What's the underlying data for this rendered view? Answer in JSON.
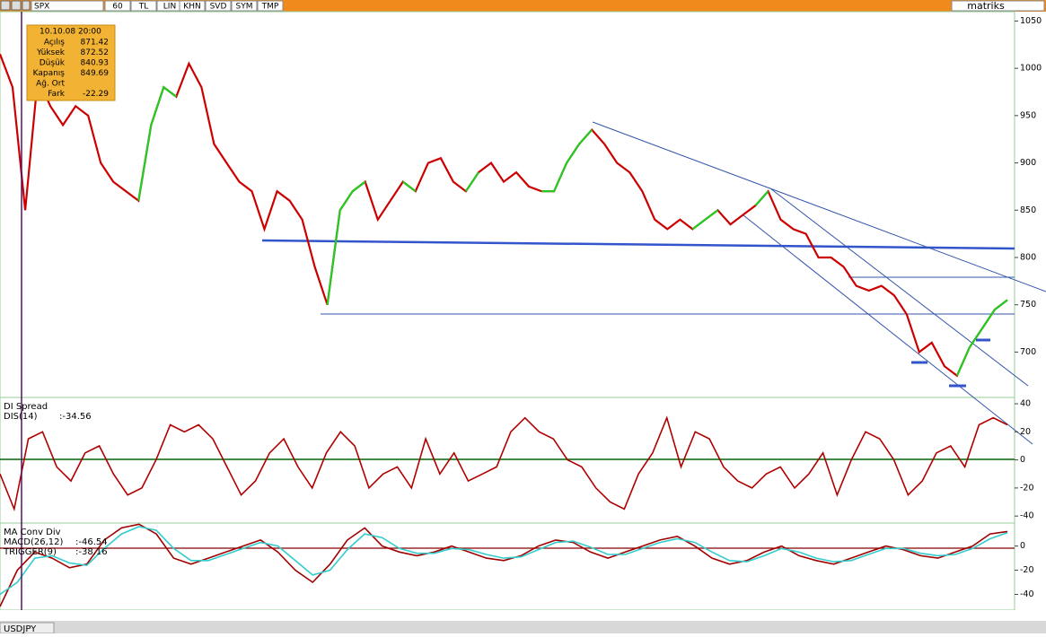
{
  "toolbar": {
    "symbol": "SPX",
    "buttons": [
      "60",
      "TL",
      "LIN",
      "KHN",
      "SVD",
      "SYM",
      "TMP"
    ],
    "brand": "matriks"
  },
  "info_box": {
    "datetime": "10.10.08 20:00",
    "rows": [
      {
        "label": "Açılış",
        "value": "871.42"
      },
      {
        "label": "Yüksek",
        "value": "872.52"
      },
      {
        "label": "Düşük",
        "value": "840.93"
      },
      {
        "label": "Kapanış",
        "value": "849.69"
      },
      {
        "label": "Ağ. Ort"
      },
      {
        "label": "Fark",
        "value": "-22.29"
      }
    ]
  },
  "status": {
    "symbol": "USDJPY"
  },
  "chart_data": [
    {
      "type": "line",
      "ylim": [
        652,
        1058
      ],
      "yticks": [
        700,
        750,
        800,
        850,
        900,
        950,
        1000,
        1050
      ],
      "series": [
        {
          "color": "#cc0000",
          "values": [
            1015,
            980,
            850,
            990,
            960,
            940,
            960,
            950,
            900,
            880,
            870,
            860,
            940,
            980,
            970,
            1005,
            980,
            920,
            900,
            880,
            870,
            830,
            870,
            860,
            840,
            790,
            750,
            850,
            870,
            880,
            840,
            860,
            880,
            870,
            900,
            905,
            880,
            870,
            890,
            900,
            880,
            890,
            875,
            870,
            870,
            900,
            920,
            935,
            920,
            900,
            890,
            870,
            840,
            830,
            840,
            830,
            840,
            850,
            835,
            845,
            855,
            870,
            840,
            830,
            825,
            800,
            800,
            790,
            770,
            765,
            770,
            760,
            740,
            700,
            710,
            685,
            675,
            705,
            725,
            745,
            755
          ]
        },
        {
          "color": "#22cc22",
          "values": [
            null,
            null,
            null,
            null,
            null,
            null,
            null,
            null,
            null,
            null,
            null,
            860,
            940,
            980,
            970,
            null,
            null,
            null,
            null,
            null,
            null,
            null,
            null,
            null,
            null,
            null,
            750,
            850,
            870,
            880,
            null,
            null,
            880,
            870,
            null,
            null,
            null,
            870,
            890,
            null,
            null,
            null,
            null,
            870,
            870,
            900,
            920,
            935,
            null,
            null,
            null,
            null,
            null,
            null,
            null,
            830,
            840,
            850,
            null,
            null,
            855,
            870,
            null,
            null,
            null,
            null,
            null,
            null,
            null,
            null,
            null,
            null,
            null,
            null,
            null,
            null,
            675,
            705,
            725,
            745,
            755
          ]
        }
      ]
    },
    {
      "type": "line",
      "title": "DI Spread",
      "label": "DIS(14)",
      "value_text": ":-34.56",
      "ylim": [
        -45,
        44.5
      ],
      "yticks": [
        40,
        20,
        0,
        -20,
        -40
      ],
      "series": [
        {
          "color": "#b00000",
          "values": [
            -10,
            -35,
            15,
            20,
            -5,
            -15,
            5,
            10,
            -10,
            -25,
            -20,
            0,
            25,
            20,
            25,
            15,
            -5,
            -25,
            -15,
            5,
            15,
            -5,
            -20,
            5,
            20,
            10,
            -20,
            -10,
            -5,
            -20,
            15,
            -10,
            5,
            -15,
            -10,
            -5,
            20,
            30,
            20,
            15,
            0,
            -5,
            -20,
            -30,
            -35,
            -10,
            5,
            30,
            -5,
            20,
            15,
            -5,
            -15,
            -20,
            -10,
            -5,
            -20,
            -10,
            5,
            -25,
            0,
            20,
            15,
            0,
            -25,
            -15,
            5,
            10,
            -5,
            25,
            30,
            25
          ]
        }
      ]
    },
    {
      "type": "line",
      "title": "MA Conv Div",
      "ylim": [
        -53,
        19
      ],
      "yticks": [
        0,
        -20,
        -40
      ],
      "series": [
        {
          "name": "MACD(26,12)",
          "value_text": ":-46.54",
          "color": "#a00000",
          "values": [
            -50,
            -20,
            -5,
            -10,
            -18,
            -15,
            5,
            15,
            18,
            10,
            -10,
            -15,
            -10,
            -5,
            0,
            5,
            -5,
            -20,
            -30,
            -15,
            5,
            15,
            0,
            -5,
            -8,
            -5,
            0,
            -5,
            -10,
            -12,
            -8,
            0,
            5,
            3,
            -5,
            -10,
            -5,
            0,
            5,
            8,
            0,
            -10,
            -15,
            -12,
            -5,
            0,
            -8,
            -12,
            -15,
            -10,
            -5,
            0,
            -3,
            -8,
            -10,
            -5,
            0,
            10,
            12
          ]
        },
        {
          "name": "TRIGGER(9)",
          "value_text": ":-38.16",
          "color": "#33cccc",
          "values": [
            -40,
            -30,
            -10,
            -8,
            -14,
            -16,
            -2,
            10,
            16,
            13,
            -2,
            -12,
            -12,
            -7,
            -2,
            3,
            0,
            -12,
            -24,
            -20,
            -3,
            10,
            7,
            -2,
            -6,
            -6,
            -2,
            -3,
            -7,
            -10,
            -9,
            -3,
            3,
            4,
            -1,
            -7,
            -7,
            -2,
            3,
            6,
            3,
            -5,
            -12,
            -13,
            -8,
            -2,
            -5,
            -10,
            -13,
            -12,
            -7,
            -2,
            -2,
            -6,
            -8,
            -7,
            -2,
            6,
            11
          ]
        }
      ]
    }
  ]
}
